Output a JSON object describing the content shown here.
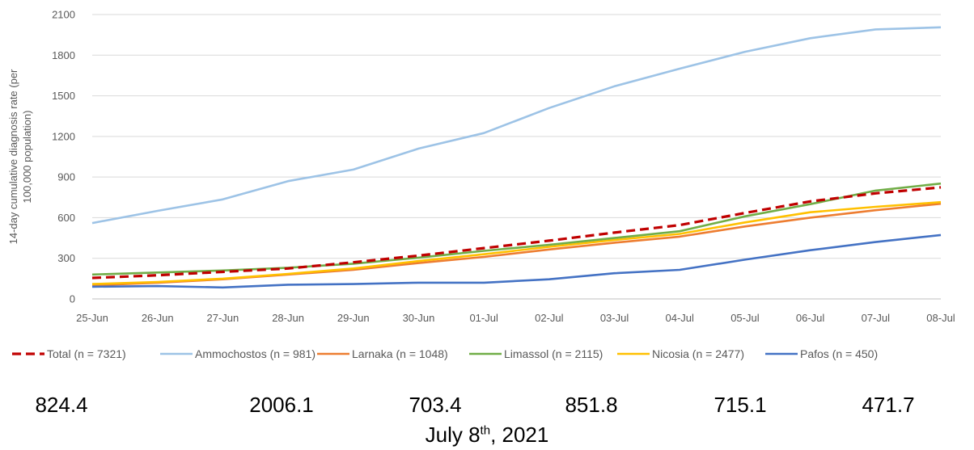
{
  "chart_data": {
    "type": "line",
    "ylabel": "14-day cumulative diagnosis rate (per 100,000 population)",
    "ylabel_lines": [
      "14-day cumulative diagnosis rate (per",
      "100,000 population)"
    ],
    "ylim": [
      0,
      2100
    ],
    "yticks": [
      0,
      300,
      600,
      900,
      1200,
      1500,
      1800,
      2100
    ],
    "ytick_labels": [
      "0",
      "300",
      "600",
      "900",
      "1200",
      "1500",
      "1800",
      "2100"
    ],
    "grid": true,
    "legend_position": "bottom",
    "categories": [
      "25-Jun",
      "26-Jun",
      "27-Jun",
      "28-Jun",
      "29-Jun",
      "30-Jun",
      "01-Jul",
      "02-Jul",
      "03-Jul",
      "04-Jul",
      "05-Jul",
      "06-Jul",
      "07-Jul",
      "08-Jul"
    ],
    "series": [
      {
        "name": "Total (n = 7321)",
        "color": "#C00000",
        "dashed": true,
        "values": [
          155,
          175,
          200,
          225,
          270,
          320,
          375,
          430,
          490,
          545,
          635,
          720,
          780,
          824
        ]
      },
      {
        "name": "Ammochostos (n = 981)",
        "color": "#9DC3E6",
        "dashed": false,
        "values": [
          560,
          650,
          735,
          870,
          955,
          1110,
          1225,
          1410,
          1570,
          1700,
          1825,
          1925,
          1990,
          2006
        ]
      },
      {
        "name": "Larnaka (n = 1048)",
        "color": "#ED7D31",
        "dashed": false,
        "values": [
          100,
          120,
          145,
          180,
          215,
          265,
          310,
          365,
          415,
          460,
          535,
          600,
          655,
          703
        ]
      },
      {
        "name": "Limassol (n = 2115)",
        "color": "#70AD47",
        "dashed": false,
        "values": [
          180,
          195,
          210,
          230,
          260,
          305,
          355,
          400,
          450,
          500,
          610,
          700,
          800,
          852
        ]
      },
      {
        "name": "Nicosia (n = 2477)",
        "color": "#FFC000",
        "dashed": false,
        "values": [
          110,
          125,
          150,
          185,
          225,
          280,
          330,
          385,
          435,
          480,
          565,
          640,
          680,
          715
        ]
      },
      {
        "name": "Pafos (n = 450)",
        "color": "#4472C4",
        "dashed": false,
        "values": [
          90,
          95,
          85,
          105,
          110,
          120,
          120,
          145,
          190,
          215,
          290,
          360,
          420,
          472
        ]
      }
    ]
  },
  "totals": [
    "824.4",
    "2006.1",
    "703.4",
    "851.8",
    "715.1",
    "471.7"
  ],
  "date_label": {
    "prefix": "July 8",
    "sup": "th",
    "suffix": ", 2021"
  }
}
